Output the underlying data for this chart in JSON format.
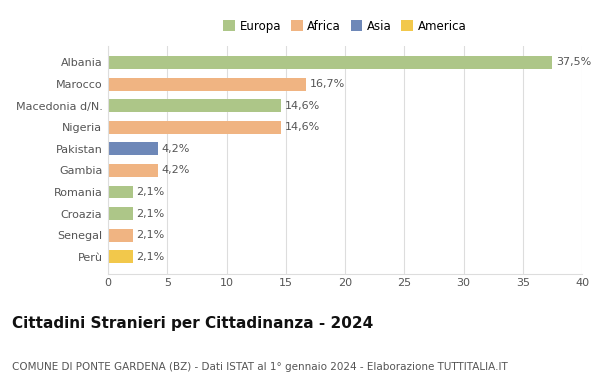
{
  "categories": [
    "Albania",
    "Marocco",
    "Macedonia d/N.",
    "Nigeria",
    "Pakistan",
    "Gambia",
    "Romania",
    "Croazia",
    "Senegal",
    "Perù"
  ],
  "values": [
    37.5,
    16.7,
    14.6,
    14.6,
    4.2,
    4.2,
    2.1,
    2.1,
    2.1,
    2.1
  ],
  "labels": [
    "37,5%",
    "16,7%",
    "14,6%",
    "14,6%",
    "4,2%",
    "4,2%",
    "2,1%",
    "2,1%",
    "2,1%",
    "2,1%"
  ],
  "colors": [
    "#adc688",
    "#f0b482",
    "#adc688",
    "#f0b482",
    "#6e88b8",
    "#f0b482",
    "#adc688",
    "#adc688",
    "#f0b482",
    "#f2c84b"
  ],
  "legend_labels": [
    "Europa",
    "Africa",
    "Asia",
    "America"
  ],
  "legend_colors": [
    "#adc688",
    "#f0b482",
    "#6e88b8",
    "#f2c84b"
  ],
  "title": "Cittadini Stranieri per Cittadinanza - 2024",
  "subtitle": "COMUNE DI PONTE GARDENA (BZ) - Dati ISTAT al 1° gennaio 2024 - Elaborazione TUTTITALIA.IT",
  "xlim": [
    0,
    40
  ],
  "xticks": [
    0,
    5,
    10,
    15,
    20,
    25,
    30,
    35,
    40
  ],
  "background_color": "#ffffff",
  "grid_color": "#dddddd",
  "bar_height": 0.6,
  "label_fontsize": 8,
  "tick_fontsize": 8,
  "title_fontsize": 11,
  "subtitle_fontsize": 7.5
}
